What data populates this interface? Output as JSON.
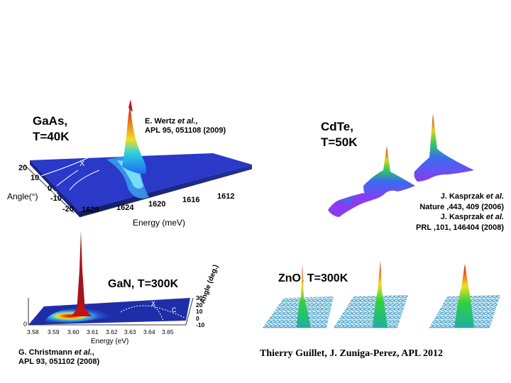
{
  "panels": {
    "gaas": {
      "material": "GaAs,",
      "temperature": "T=40K",
      "ref_line1_prefix": "E. Wertz ",
      "ref_line1_italic": "et al.",
      "ref_line1_suffix": ",",
      "ref_line2": "APL 95, 051108 (2009)",
      "angle_ticks": [
        "20",
        "10",
        "0",
        "-10",
        "-20"
      ],
      "angle_label": "Angle(°)",
      "energy_ticks": [
        "1628",
        "1624",
        "1620",
        "1616",
        "1612"
      ],
      "energy_label": "Energy (meV)",
      "curve_x": "X",
      "curve_c": "C"
    },
    "cdte": {
      "material": "CdTe,",
      "temperature": "T=50K",
      "ref1_line1_prefix": "J. Kasprzak ",
      "ref1_line1_italic": "et al.",
      "ref1_line2": "Nature ,443, 409 (2006)",
      "ref2_line1_prefix": "J. Kasprzak ",
      "ref2_line1_italic": "et al.",
      "ref2_line2": "PRL ,101, 146404 (2008)"
    },
    "gan": {
      "title": "GaN, T=300K",
      "energy_ticks": [
        "3.58",
        "3.59",
        "3.60",
        "3.61",
        "3.62",
        "3.63",
        "3.64",
        "3.65"
      ],
      "energy_label": "Energy (eV)",
      "angle_ticks": [
        "30",
        "20",
        "10",
        "0",
        "-10"
      ],
      "angle_label": "Angle (deg.)",
      "zero_tick": "0",
      "curve_x": "X",
      "curve_c": "C",
      "ref_line1_prefix": "G. Christmann ",
      "ref_line1_italic": "et al.",
      "ref_line1_suffix": ",",
      "ref_line2": "APL 93, 051102 (2008)"
    },
    "zno": {
      "title": "ZnO, T=300K",
      "credit": "Thierry Guillet, J. Zuniga-Perez, APL 2012"
    }
  },
  "colors": {
    "gaas_plane": "#2a39c8",
    "peak_red": "#c0121a",
    "gan_peak": "#a3151c",
    "cdte_violet": "#8a3cf0",
    "zno_noise": "#2aa0c8"
  }
}
